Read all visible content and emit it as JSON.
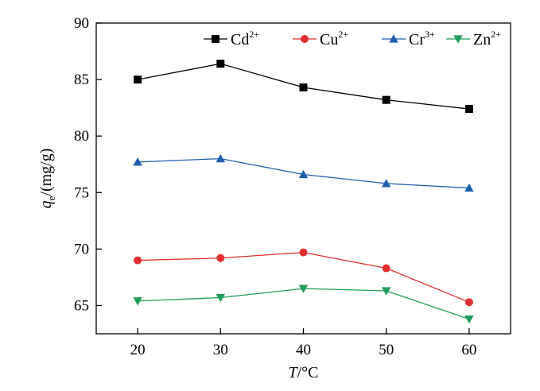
{
  "chart_data": {
    "type": "line",
    "x": [
      20,
      30,
      40,
      50,
      60
    ],
    "xlabel": {
      "italic": "T",
      "rest": "/°C"
    },
    "ylabel": {
      "italic": "q",
      "sub": "e",
      "rest": "/(mg/g)"
    },
    "xlim": [
      15,
      65
    ],
    "ylim": [
      62.5,
      90
    ],
    "xticks": [
      20,
      30,
      40,
      50,
      60
    ],
    "yticks": [
      65,
      70,
      75,
      80,
      85,
      90
    ],
    "grid": false,
    "legend_position": "top-right",
    "series": [
      {
        "name": "Cd",
        "charge": "2+",
        "marker": "square",
        "color": "#000000",
        "values": [
          85.0,
          86.4,
          84.3,
          83.2,
          82.4
        ]
      },
      {
        "name": "Cu",
        "charge": "2+",
        "marker": "circle",
        "color": "#e02f2f",
        "values": [
          69.0,
          69.2,
          69.7,
          68.3,
          65.3
        ]
      },
      {
        "name": "Cr",
        "charge": "3+",
        "marker": "triangle-up",
        "color": "#1f5fb0",
        "values": [
          77.7,
          78.0,
          76.6,
          75.8,
          75.4
        ]
      },
      {
        "name": "Zn",
        "charge": "2+",
        "marker": "triangle-down",
        "color": "#1f9e5a",
        "values": [
          65.4,
          65.7,
          66.5,
          66.3,
          63.8
        ]
      }
    ]
  }
}
